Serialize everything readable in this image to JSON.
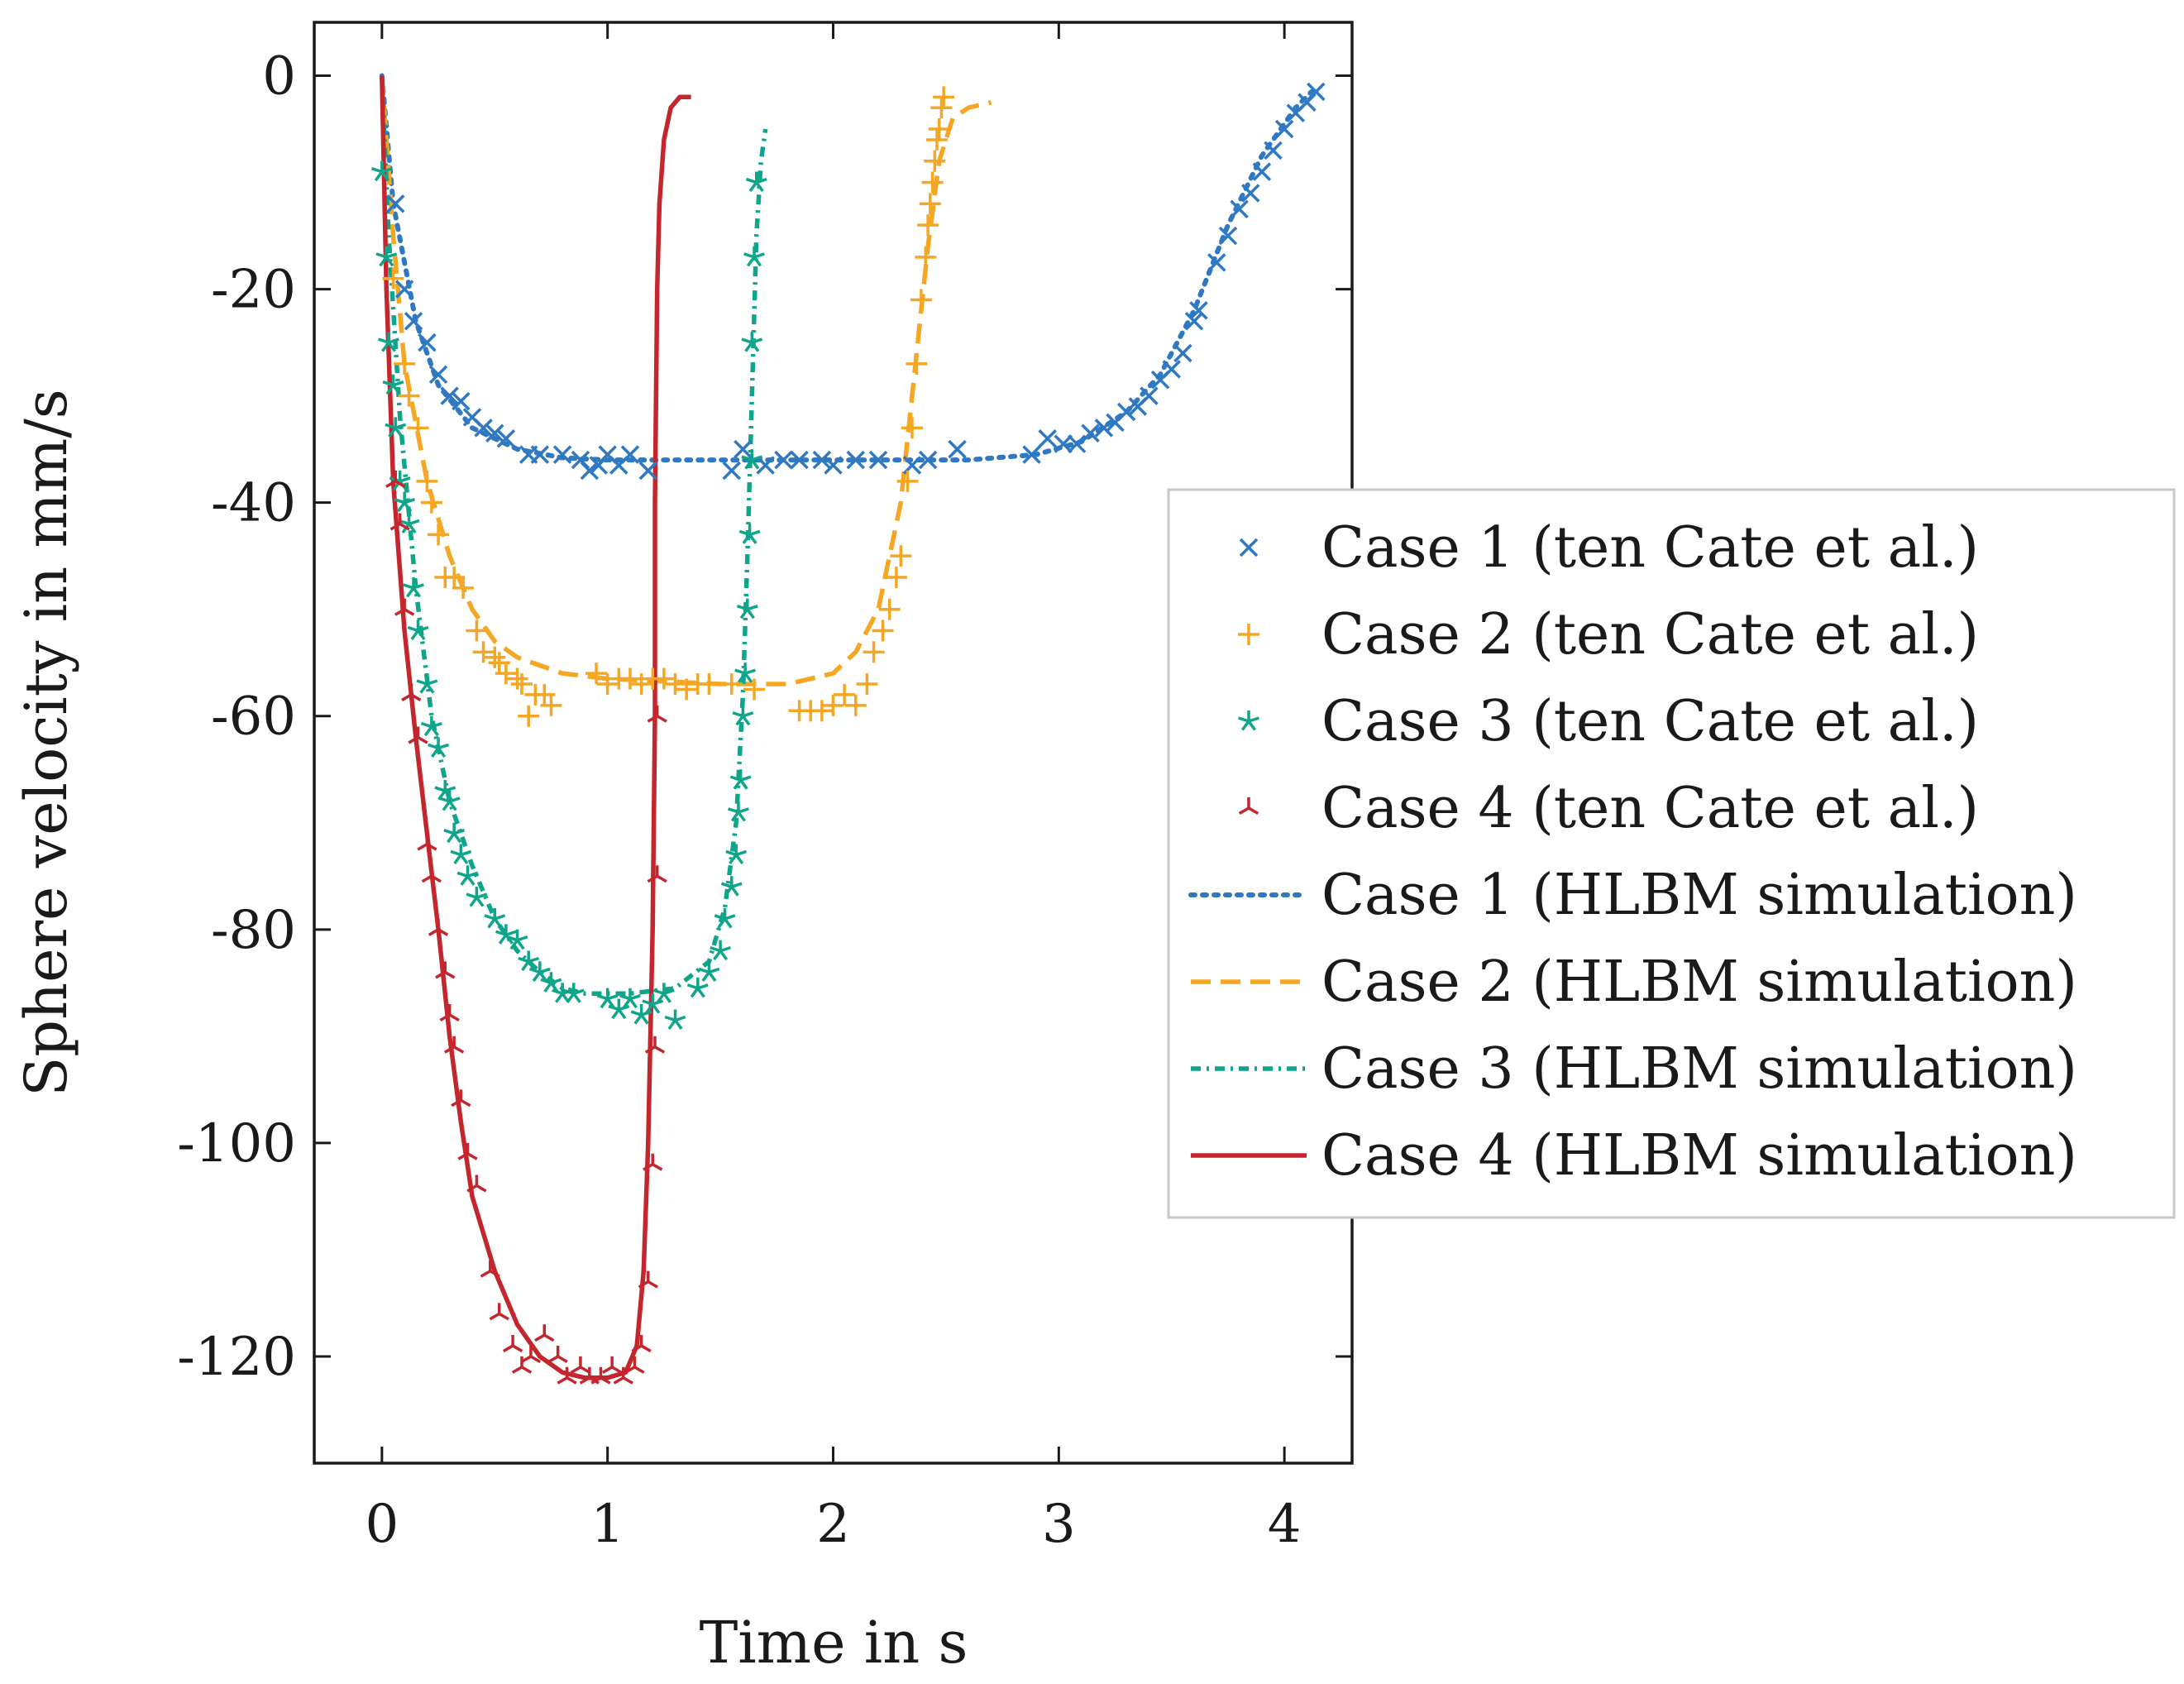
{
  "chart_data": {
    "type": "line",
    "title": "",
    "xlabel": "Time in s",
    "ylabel": "Sphere velocity in mm/s",
    "xlim": [
      -0.3,
      4.3
    ],
    "ylim": [
      -130,
      5
    ],
    "xticks": [
      0,
      1,
      2,
      3,
      4
    ],
    "yticks": [
      0,
      -20,
      -40,
      -60,
      -80,
      -100,
      -120
    ],
    "xtick_labels": [
      "0",
      "1",
      "2",
      "3",
      "4"
    ],
    "ytick_labels": [
      "0",
      "-20",
      "-40",
      "-60",
      "-80",
      "-100",
      "-120"
    ],
    "grid": false,
    "legend_position": "right",
    "series": [
      {
        "name": "Case 1 (ten Cate et al.)",
        "kind": "markers",
        "marker": "x",
        "color": "#2f78c2",
        "points": [
          [
            0.06,
            -12
          ],
          [
            0.1,
            -20
          ],
          [
            0.14,
            -23
          ],
          [
            0.2,
            -25
          ],
          [
            0.25,
            -28
          ],
          [
            0.3,
            -30
          ],
          [
            0.35,
            -30.5
          ],
          [
            0.4,
            -32
          ],
          [
            0.45,
            -33
          ],
          [
            0.5,
            -33.5
          ],
          [
            0.55,
            -34
          ],
          [
            0.65,
            -35.5
          ],
          [
            0.7,
            -35.5
          ],
          [
            0.8,
            -35.5
          ],
          [
            0.88,
            -36
          ],
          [
            0.92,
            -37
          ],
          [
            0.96,
            -36.5
          ],
          [
            1.0,
            -35.5
          ],
          [
            1.05,
            -36.5
          ],
          [
            1.1,
            -35.5
          ],
          [
            1.18,
            -37
          ],
          [
            1.55,
            -37
          ],
          [
            1.6,
            -35
          ],
          [
            1.7,
            -36.5
          ],
          [
            1.78,
            -36
          ],
          [
            1.85,
            -36
          ],
          [
            1.95,
            -36
          ],
          [
            2.0,
            -36.5
          ],
          [
            2.1,
            -36
          ],
          [
            2.2,
            -36
          ],
          [
            2.35,
            -36.5
          ],
          [
            2.42,
            -36
          ],
          [
            2.55,
            -35
          ],
          [
            2.88,
            -35.5
          ],
          [
            2.95,
            -34
          ],
          [
            3.02,
            -34.5
          ],
          [
            3.08,
            -34.5
          ],
          [
            3.14,
            -33.5
          ],
          [
            3.2,
            -33
          ],
          [
            3.25,
            -32.5
          ],
          [
            3.3,
            -31.5
          ],
          [
            3.35,
            -31
          ],
          [
            3.4,
            -30
          ],
          [
            3.45,
            -28.5
          ],
          [
            3.5,
            -27.5
          ],
          [
            3.55,
            -26
          ],
          [
            3.6,
            -23
          ],
          [
            3.62,
            -22
          ],
          [
            3.7,
            -17.5
          ],
          [
            3.75,
            -15
          ],
          [
            3.8,
            -12.5
          ],
          [
            3.85,
            -11
          ],
          [
            3.9,
            -9
          ],
          [
            3.95,
            -7
          ],
          [
            4.0,
            -5
          ],
          [
            4.05,
            -3.5
          ],
          [
            4.1,
            -2.5
          ],
          [
            4.14,
            -1.5
          ]
        ]
      },
      {
        "name": "Case 2 (ten Cate et al.)",
        "kind": "markers",
        "marker": "+",
        "color": "#f5a623",
        "points": [
          [
            0.05,
            -19
          ],
          [
            0.1,
            -27
          ],
          [
            0.12,
            -30
          ],
          [
            0.16,
            -33
          ],
          [
            0.2,
            -38
          ],
          [
            0.22,
            -40
          ],
          [
            0.25,
            -43
          ],
          [
            0.28,
            -47
          ],
          [
            0.32,
            -47
          ],
          [
            0.36,
            -48
          ],
          [
            0.42,
            -52
          ],
          [
            0.45,
            -54
          ],
          [
            0.5,
            -54.5
          ],
          [
            0.52,
            -55
          ],
          [
            0.55,
            -56
          ],
          [
            0.6,
            -56.5
          ],
          [
            0.62,
            -57
          ],
          [
            0.65,
            -60
          ],
          [
            0.68,
            -58
          ],
          [
            0.72,
            -58
          ],
          [
            0.75,
            -59
          ],
          [
            0.95,
            -56
          ],
          [
            1.0,
            -57
          ],
          [
            1.05,
            -56.5
          ],
          [
            1.1,
            -56.5
          ],
          [
            1.15,
            -57
          ],
          [
            1.2,
            -56.5
          ],
          [
            1.25,
            -56.5
          ],
          [
            1.3,
            -57
          ],
          [
            1.35,
            -57.5
          ],
          [
            1.4,
            -57
          ],
          [
            1.45,
            -57
          ],
          [
            1.55,
            -57
          ],
          [
            1.65,
            -57.5
          ],
          [
            1.85,
            -59.5
          ],
          [
            1.9,
            -59.5
          ],
          [
            1.95,
            -59.5
          ],
          [
            2.0,
            -59
          ],
          [
            2.05,
            -58
          ],
          [
            2.1,
            -59
          ],
          [
            2.15,
            -57
          ],
          [
            2.18,
            -54
          ],
          [
            2.22,
            -52
          ],
          [
            2.25,
            -50
          ],
          [
            2.28,
            -47
          ],
          [
            2.3,
            -45
          ],
          [
            2.33,
            -38
          ],
          [
            2.35,
            -33
          ],
          [
            2.37,
            -27
          ],
          [
            2.39,
            -21
          ],
          [
            2.41,
            -17
          ],
          [
            2.42,
            -14
          ],
          [
            2.43,
            -12
          ],
          [
            2.44,
            -10
          ],
          [
            2.45,
            -8
          ],
          [
            2.46,
            -6
          ],
          [
            2.47,
            -5
          ],
          [
            2.48,
            -3
          ],
          [
            2.49,
            -2
          ]
        ]
      },
      {
        "name": "Case 3 (ten Cate et al.)",
        "kind": "markers",
        "marker": "*",
        "color": "#0ea68a",
        "points": [
          [
            0.0,
            -9
          ],
          [
            0.02,
            -17
          ],
          [
            0.03,
            -25
          ],
          [
            0.05,
            -29
          ],
          [
            0.06,
            -33
          ],
          [
            0.08,
            -38
          ],
          [
            0.1,
            -40
          ],
          [
            0.12,
            -42
          ],
          [
            0.14,
            -48
          ],
          [
            0.16,
            -52
          ],
          [
            0.2,
            -57
          ],
          [
            0.22,
            -61
          ],
          [
            0.25,
            -63
          ],
          [
            0.28,
            -67
          ],
          [
            0.3,
            -68
          ],
          [
            0.32,
            -71
          ],
          [
            0.35,
            -73
          ],
          [
            0.38,
            -75
          ],
          [
            0.42,
            -77
          ],
          [
            0.5,
            -79
          ],
          [
            0.55,
            -80.5
          ],
          [
            0.6,
            -81
          ],
          [
            0.65,
            -83
          ],
          [
            0.7,
            -84
          ],
          [
            0.75,
            -85
          ],
          [
            0.8,
            -86
          ],
          [
            0.85,
            -86
          ],
          [
            1.0,
            -86.5
          ],
          [
            1.05,
            -87.5
          ],
          [
            1.1,
            -86.5
          ],
          [
            1.15,
            -88
          ],
          [
            1.2,
            -87
          ],
          [
            1.25,
            -86
          ],
          [
            1.3,
            -88.5
          ],
          [
            1.4,
            -85.5
          ],
          [
            1.45,
            -84
          ],
          [
            1.5,
            -82
          ],
          [
            1.52,
            -79
          ],
          [
            1.55,
            -76
          ],
          [
            1.57,
            -73
          ],
          [
            1.58,
            -69
          ],
          [
            1.59,
            -66
          ],
          [
            1.6,
            -60
          ],
          [
            1.61,
            -56
          ],
          [
            1.62,
            -50
          ],
          [
            1.63,
            -43
          ],
          [
            1.64,
            -36
          ],
          [
            1.64,
            -25
          ],
          [
            1.65,
            -17
          ],
          [
            1.66,
            -10
          ]
        ]
      },
      {
        "name": "Case 4 (ten Cate et al.)",
        "kind": "markers",
        "marker": "tri",
        "color": "#c4262e",
        "points": [
          [
            0.06,
            -38
          ],
          [
            0.08,
            -42
          ],
          [
            0.1,
            -50
          ],
          [
            0.13,
            -58
          ],
          [
            0.16,
            -62
          ],
          [
            0.2,
            -72
          ],
          [
            0.22,
            -75
          ],
          [
            0.25,
            -80
          ],
          [
            0.28,
            -84
          ],
          [
            0.3,
            -88
          ],
          [
            0.32,
            -91
          ],
          [
            0.35,
            -96
          ],
          [
            0.38,
            -101
          ],
          [
            0.42,
            -104
          ],
          [
            0.48,
            -112
          ],
          [
            0.52,
            -116
          ],
          [
            0.58,
            -119
          ],
          [
            0.62,
            -121
          ],
          [
            0.66,
            -120
          ],
          [
            0.72,
            -118
          ],
          [
            0.78,
            -120
          ],
          [
            0.82,
            -122
          ],
          [
            0.88,
            -121
          ],
          [
            0.92,
            -122
          ],
          [
            0.97,
            -122
          ],
          [
            1.02,
            -121
          ],
          [
            1.07,
            -122
          ],
          [
            1.12,
            -121
          ],
          [
            1.15,
            -119
          ],
          [
            1.18,
            -113
          ],
          [
            1.2,
            -102
          ],
          [
            1.21,
            -91
          ],
          [
            1.22,
            -75
          ],
          [
            1.22,
            -60
          ]
        ]
      },
      {
        "name": "Case 1 (HLBM simulation)",
        "kind": "line",
        "dash": "dotted",
        "color": "#2f78c2",
        "points": [
          [
            0,
            0
          ],
          [
            0.05,
            -12
          ],
          [
            0.15,
            -23
          ],
          [
            0.25,
            -29
          ],
          [
            0.4,
            -33
          ],
          [
            0.6,
            -35
          ],
          [
            0.8,
            -35.8
          ],
          [
            1.0,
            -36
          ],
          [
            1.4,
            -36
          ],
          [
            2.0,
            -36
          ],
          [
            2.6,
            -36
          ],
          [
            2.9,
            -35.5
          ],
          [
            3.1,
            -34.3
          ],
          [
            3.3,
            -31.5
          ],
          [
            3.45,
            -28
          ],
          [
            3.6,
            -22
          ],
          [
            3.75,
            -14
          ],
          [
            3.9,
            -7.5
          ],
          [
            4.05,
            -3
          ],
          [
            4.12,
            -1.5
          ]
        ]
      },
      {
        "name": "Case 2 (HLBM simulation)",
        "kind": "line",
        "dash": "dashed",
        "color": "#f5a623",
        "points": [
          [
            0,
            0
          ],
          [
            0.05,
            -15
          ],
          [
            0.1,
            -27
          ],
          [
            0.2,
            -38
          ],
          [
            0.3,
            -45
          ],
          [
            0.4,
            -50
          ],
          [
            0.5,
            -53
          ],
          [
            0.6,
            -54.5
          ],
          [
            0.8,
            -56
          ],
          [
            1.0,
            -56.5
          ],
          [
            1.5,
            -57
          ],
          [
            1.8,
            -57
          ],
          [
            2.0,
            -56
          ],
          [
            2.1,
            -54
          ],
          [
            2.2,
            -50
          ],
          [
            2.3,
            -40
          ],
          [
            2.36,
            -28
          ],
          [
            2.42,
            -16
          ],
          [
            2.47,
            -8
          ],
          [
            2.53,
            -4
          ],
          [
            2.6,
            -3
          ],
          [
            2.7,
            -2.5
          ]
        ]
      },
      {
        "name": "Case 3 (HLBM simulation)",
        "kind": "line",
        "dash": "dashdot",
        "color": "#0ea68a",
        "points": [
          [
            0,
            0
          ],
          [
            0.03,
            -15
          ],
          [
            0.08,
            -32
          ],
          [
            0.15,
            -48
          ],
          [
            0.22,
            -60
          ],
          [
            0.3,
            -68
          ],
          [
            0.4,
            -74
          ],
          [
            0.5,
            -79
          ],
          [
            0.6,
            -82
          ],
          [
            0.7,
            -84
          ],
          [
            0.8,
            -85.5
          ],
          [
            0.9,
            -86
          ],
          [
            1.1,
            -86
          ],
          [
            1.3,
            -85.5
          ],
          [
            1.45,
            -83
          ],
          [
            1.52,
            -78
          ],
          [
            1.57,
            -70
          ],
          [
            1.6,
            -58
          ],
          [
            1.62,
            -45
          ],
          [
            1.64,
            -30
          ],
          [
            1.66,
            -15
          ],
          [
            1.68,
            -8
          ],
          [
            1.7,
            -5
          ]
        ]
      },
      {
        "name": "Case 4 (HLBM simulation)",
        "kind": "line",
        "dash": "solid",
        "color": "#c4262e",
        "points": [
          [
            0,
            0
          ],
          [
            0.02,
            -20
          ],
          [
            0.05,
            -38
          ],
          [
            0.1,
            -52
          ],
          [
            0.15,
            -62
          ],
          [
            0.2,
            -71
          ],
          [
            0.25,
            -80
          ],
          [
            0.3,
            -90
          ],
          [
            0.35,
            -98
          ],
          [
            0.4,
            -105
          ],
          [
            0.5,
            -112
          ],
          [
            0.6,
            -117
          ],
          [
            0.7,
            -120
          ],
          [
            0.8,
            -121.5
          ],
          [
            0.9,
            -122
          ],
          [
            1.0,
            -122
          ],
          [
            1.08,
            -121.5
          ],
          [
            1.13,
            -119
          ],
          [
            1.16,
            -112
          ],
          [
            1.18,
            -100
          ],
          [
            1.2,
            -80
          ],
          [
            1.21,
            -60
          ],
          [
            1.21,
            -40
          ],
          [
            1.22,
            -20
          ],
          [
            1.23,
            -12
          ],
          [
            1.25,
            -6
          ],
          [
            1.28,
            -3
          ],
          [
            1.32,
            -2
          ],
          [
            1.37,
            -2
          ]
        ]
      }
    ]
  }
}
